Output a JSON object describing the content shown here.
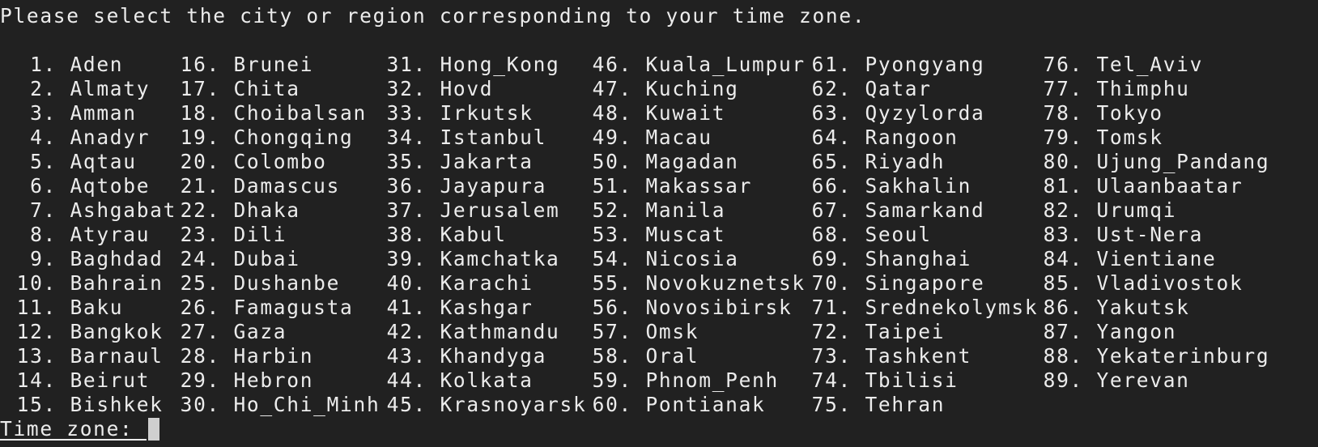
{
  "terminal": {
    "header": "Please select the city or region corresponding to your time zone.",
    "prompt": "Time zone: ",
    "input_value": ""
  },
  "columns": [
    {
      "items": [
        {
          "num": "1.",
          "name": "Aden"
        },
        {
          "num": "2.",
          "name": "Almaty"
        },
        {
          "num": "3.",
          "name": "Amman"
        },
        {
          "num": "4.",
          "name": "Anadyr"
        },
        {
          "num": "5.",
          "name": "Aqtau"
        },
        {
          "num": "6.",
          "name": "Aqtobe"
        },
        {
          "num": "7.",
          "name": "Ashgabat"
        },
        {
          "num": "8.",
          "name": "Atyrau"
        },
        {
          "num": "9.",
          "name": "Baghdad"
        },
        {
          "num": "10.",
          "name": "Bahrain"
        },
        {
          "num": "11.",
          "name": "Baku"
        },
        {
          "num": "12.",
          "name": "Bangkok"
        },
        {
          "num": "13.",
          "name": "Barnaul"
        },
        {
          "num": "14.",
          "name": "Beirut"
        },
        {
          "num": "15.",
          "name": "Bishkek"
        }
      ]
    },
    {
      "items": [
        {
          "num": "16.",
          "name": "Brunei"
        },
        {
          "num": "17.",
          "name": "Chita"
        },
        {
          "num": "18.",
          "name": "Choibalsan"
        },
        {
          "num": "19.",
          "name": "Chongqing"
        },
        {
          "num": "20.",
          "name": "Colombo"
        },
        {
          "num": "21.",
          "name": "Damascus"
        },
        {
          "num": "22.",
          "name": "Dhaka"
        },
        {
          "num": "23.",
          "name": "Dili"
        },
        {
          "num": "24.",
          "name": "Dubai"
        },
        {
          "num": "25.",
          "name": "Dushanbe"
        },
        {
          "num": "26.",
          "name": "Famagusta"
        },
        {
          "num": "27.",
          "name": "Gaza"
        },
        {
          "num": "28.",
          "name": "Harbin"
        },
        {
          "num": "29.",
          "name": "Hebron"
        },
        {
          "num": "30.",
          "name": "Ho_Chi_Minh"
        }
      ]
    },
    {
      "items": [
        {
          "num": "31.",
          "name": "Hong_Kong"
        },
        {
          "num": "32.",
          "name": "Hovd"
        },
        {
          "num": "33.",
          "name": "Irkutsk"
        },
        {
          "num": "34.",
          "name": "Istanbul"
        },
        {
          "num": "35.",
          "name": "Jakarta"
        },
        {
          "num": "36.",
          "name": "Jayapura"
        },
        {
          "num": "37.",
          "name": "Jerusalem"
        },
        {
          "num": "38.",
          "name": "Kabul"
        },
        {
          "num": "39.",
          "name": "Kamchatka"
        },
        {
          "num": "40.",
          "name": "Karachi"
        },
        {
          "num": "41.",
          "name": "Kashgar"
        },
        {
          "num": "42.",
          "name": "Kathmandu"
        },
        {
          "num": "43.",
          "name": "Khandyga"
        },
        {
          "num": "44.",
          "name": "Kolkata"
        },
        {
          "num": "45.",
          "name": "Krasnoyarsk"
        }
      ]
    },
    {
      "items": [
        {
          "num": "46.",
          "name": "Kuala_Lumpur"
        },
        {
          "num": "47.",
          "name": "Kuching"
        },
        {
          "num": "48.",
          "name": "Kuwait"
        },
        {
          "num": "49.",
          "name": "Macau"
        },
        {
          "num": "50.",
          "name": "Magadan"
        },
        {
          "num": "51.",
          "name": "Makassar"
        },
        {
          "num": "52.",
          "name": "Manila"
        },
        {
          "num": "53.",
          "name": "Muscat"
        },
        {
          "num": "54.",
          "name": "Nicosia"
        },
        {
          "num": "55.",
          "name": "Novokuznetsk"
        },
        {
          "num": "56.",
          "name": "Novosibirsk"
        },
        {
          "num": "57.",
          "name": "Omsk"
        },
        {
          "num": "58.",
          "name": "Oral"
        },
        {
          "num": "59.",
          "name": "Phnom_Penh"
        },
        {
          "num": "60.",
          "name": "Pontianak"
        }
      ]
    },
    {
      "items": [
        {
          "num": "61.",
          "name": "Pyongyang"
        },
        {
          "num": "62.",
          "name": "Qatar"
        },
        {
          "num": "63.",
          "name": "Qyzylorda"
        },
        {
          "num": "64.",
          "name": "Rangoon"
        },
        {
          "num": "65.",
          "name": "Riyadh"
        },
        {
          "num": "66.",
          "name": "Sakhalin"
        },
        {
          "num": "67.",
          "name": "Samarkand"
        },
        {
          "num": "68.",
          "name": "Seoul"
        },
        {
          "num": "69.",
          "name": "Shanghai"
        },
        {
          "num": "70.",
          "name": "Singapore"
        },
        {
          "num": "71.",
          "name": "Srednekolymsk"
        },
        {
          "num": "72.",
          "name": "Taipei"
        },
        {
          "num": "73.",
          "name": "Tashkent"
        },
        {
          "num": "74.",
          "name": "Tbilisi"
        },
        {
          "num": "75.",
          "name": "Tehran"
        }
      ]
    },
    {
      "items": [
        {
          "num": "76.",
          "name": "Tel_Aviv"
        },
        {
          "num": "77.",
          "name": "Thimphu"
        },
        {
          "num": "78.",
          "name": "Tokyo"
        },
        {
          "num": "79.",
          "name": "Tomsk"
        },
        {
          "num": "80.",
          "name": "Ujung_Pandang"
        },
        {
          "num": "81.",
          "name": "Ulaanbaatar"
        },
        {
          "num": "82.",
          "name": "Urumqi"
        },
        {
          "num": "83.",
          "name": "Ust-Nera"
        },
        {
          "num": "84.",
          "name": "Vientiane"
        },
        {
          "num": "85.",
          "name": "Vladivostok"
        },
        {
          "num": "86.",
          "name": "Yakutsk"
        },
        {
          "num": "87.",
          "name": "Yangon"
        },
        {
          "num": "88.",
          "name": "Yekaterinburg"
        },
        {
          "num": "89.",
          "name": "Yerevan"
        }
      ]
    }
  ],
  "colors": {
    "background": "#212121",
    "text": "#ececec",
    "cursor": "#cfcfcf"
  }
}
